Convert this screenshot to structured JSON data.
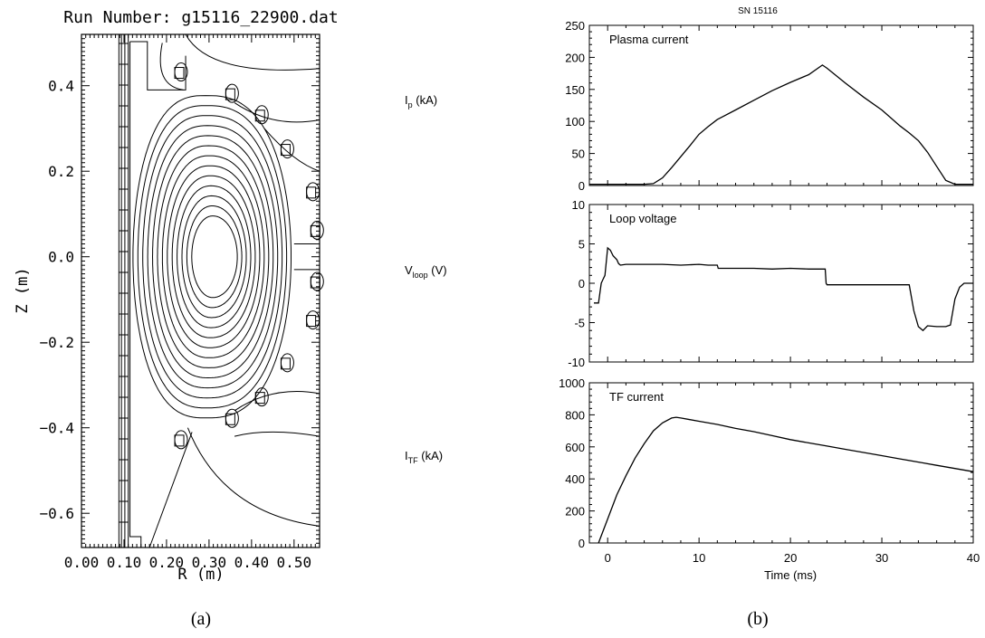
{
  "panel_a": {
    "title": "Run Number: g15116_22900.dat",
    "caption": "(a)"
  },
  "panel_b": {
    "title": "SN 15116",
    "caption": "(b)"
  },
  "side_labels": [
    {
      "main": "I",
      "sub": "p",
      "unit": " (kA)"
    },
    {
      "main": "V",
      "sub": "loop",
      "unit": " (V)"
    },
    {
      "main": "I",
      "sub": "TF",
      "unit": " (kA)"
    }
  ],
  "colors": {
    "line": "#000000",
    "background": "#ffffff"
  },
  "chart_data": [
    {
      "type": "contour",
      "title": "Run Number: g15116_22900.dat",
      "xlabel": "R (m)",
      "ylabel": "Z (m)",
      "xlim": [
        0.0,
        0.56
      ],
      "ylim": [
        -0.68,
        0.52
      ],
      "xticks": [
        0.0,
        0.1,
        0.2,
        0.3,
        0.4,
        0.5
      ],
      "xtick_labels": [
        "0.00",
        "0.10",
        "0.20",
        "0.30",
        "0.40",
        "0.50"
      ],
      "yticks": [
        -0.6,
        -0.4,
        -0.2,
        0.0,
        0.2,
        0.4
      ],
      "ytick_labels": [
        "−0.6",
        "−0.4",
        "−0.2",
        "0.0",
        "0.2",
        "0.4"
      ],
      "magnetic_axis": {
        "R": 0.31,
        "Z": 0.0
      },
      "closed_flux_surfaces": 13,
      "coils": [
        {
          "R": 0.23,
          "Z": 0.43
        },
        {
          "R": 0.35,
          "Z": 0.38
        },
        {
          "R": 0.42,
          "Z": 0.33
        },
        {
          "R": 0.48,
          "Z": 0.25
        },
        {
          "R": 0.54,
          "Z": 0.15
        },
        {
          "R": 0.55,
          "Z": 0.06
        },
        {
          "R": 0.55,
          "Z": -0.06
        },
        {
          "R": 0.54,
          "Z": -0.15
        },
        {
          "R": 0.48,
          "Z": -0.25
        },
        {
          "R": 0.42,
          "Z": -0.33
        },
        {
          "R": 0.35,
          "Z": -0.38
        },
        {
          "R": 0.23,
          "Z": -0.43
        }
      ]
    },
    {
      "type": "line",
      "title": "Plasma current",
      "xlim": [
        -2,
        40
      ],
      "ylim": [
        0,
        250
      ],
      "yticks": [
        0,
        50,
        100,
        150,
        200,
        250
      ],
      "x": [
        -2,
        0,
        2,
        4,
        5,
        6,
        7,
        8,
        9,
        10,
        11,
        12,
        14,
        16,
        18,
        20,
        22,
        23.5,
        24,
        26,
        28,
        30,
        32,
        33,
        34,
        35,
        36,
        37,
        38,
        40
      ],
      "y": [
        2,
        2,
        2,
        2,
        3,
        12,
        28,
        45,
        62,
        80,
        92,
        103,
        118,
        133,
        148,
        161,
        173,
        188,
        183,
        160,
        138,
        118,
        93,
        82,
        70,
        52,
        30,
        8,
        2,
        2
      ]
    },
    {
      "type": "line",
      "title": "Loop voltage",
      "xlim": [
        -2,
        40
      ],
      "ylim": [
        -10,
        10
      ],
      "yticks": [
        -10,
        -5,
        0,
        5,
        10
      ],
      "x": [
        -1.5,
        -1,
        -0.7,
        -0.5,
        -0.3,
        0,
        0.3,
        0.6,
        1,
        1.2,
        1.4,
        2,
        4,
        6,
        8,
        10,
        11,
        12,
        12.1,
        14,
        16,
        18,
        20,
        22,
        23.8,
        23.9,
        24,
        26,
        28,
        30,
        32,
        33,
        33.5,
        34,
        34.5,
        35,
        36,
        37,
        37.5,
        38,
        38.5,
        39,
        40
      ],
      "y": [
        -2.5,
        -2.5,
        0,
        0.5,
        1,
        4.5,
        4.2,
        3.5,
        3.0,
        2.5,
        2.3,
        2.4,
        2.4,
        2.4,
        2.3,
        2.4,
        2.3,
        2.3,
        1.9,
        1.9,
        1.9,
        1.8,
        1.9,
        1.8,
        1.8,
        0,
        -0.2,
        -0.2,
        -0.2,
        -0.2,
        -0.2,
        -0.2,
        -3.5,
        -5.5,
        -6.0,
        -5.4,
        -5.5,
        -5.5,
        -5.3,
        -2,
        -0.5,
        0,
        0
      ]
    },
    {
      "type": "line",
      "title": "TF current",
      "xlabel": "Time (ms)",
      "xlim": [
        -2,
        40
      ],
      "ylim": [
        0,
        1000
      ],
      "yticks": [
        0,
        200,
        400,
        600,
        800,
        1000
      ],
      "xticks": [
        0,
        10,
        20,
        30,
        40
      ],
      "x": [
        -1,
        0,
        1,
        2,
        3,
        4,
        5,
        6,
        7,
        7.5,
        8,
        9,
        10,
        12,
        14,
        16,
        18,
        20,
        22,
        24,
        26,
        28,
        30,
        32,
        34,
        36,
        38,
        40
      ],
      "y": [
        0,
        150,
        300,
        420,
        530,
        620,
        700,
        750,
        780,
        785,
        780,
        770,
        760,
        740,
        715,
        695,
        670,
        645,
        625,
        605,
        585,
        565,
        545,
        525,
        505,
        485,
        465,
        445
      ]
    }
  ]
}
